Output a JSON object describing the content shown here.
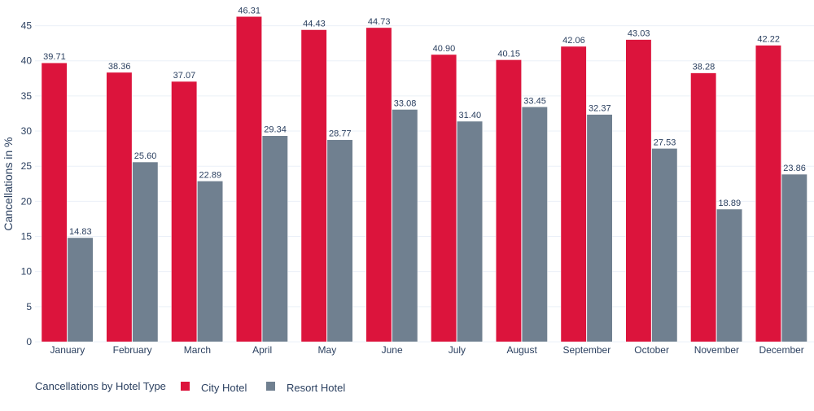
{
  "chart_data": {
    "type": "bar",
    "ylabel": "Cancellations in %",
    "xlabel": "",
    "ylim": [
      0,
      47.5
    ],
    "yticks": [
      0,
      5,
      10,
      15,
      20,
      25,
      30,
      35,
      40,
      45
    ],
    "grid": true,
    "categories": [
      "January",
      "February",
      "March",
      "April",
      "May",
      "June",
      "July",
      "August",
      "September",
      "October",
      "November",
      "December"
    ],
    "series": [
      {
        "name": "City Hotel",
        "color": "#dc143c",
        "values": [
          39.71,
          38.36,
          37.07,
          46.31,
          44.43,
          44.73,
          40.9,
          40.15,
          42.06,
          43.03,
          38.28,
          42.22
        ],
        "labels": [
          "39.71",
          "38.36",
          "37.07",
          "46.31",
          "44.43",
          "44.73",
          "40.90",
          "40.15",
          "42.06",
          "43.03",
          "38.28",
          "42.22"
        ]
      },
      {
        "name": "Resort Hotel",
        "color": "#708090",
        "values": [
          14.83,
          25.6,
          22.89,
          29.34,
          28.77,
          33.08,
          31.4,
          33.45,
          32.37,
          27.53,
          18.89,
          23.86
        ],
        "labels": [
          "14.83",
          "25.60",
          "22.89",
          "29.34",
          "28.77",
          "33.08",
          "31.40",
          "33.45",
          "32.37",
          "27.53",
          "18.89",
          "23.86"
        ]
      }
    ],
    "legend": {
      "title": "Cancellations by Hotel Type",
      "placement": "bottom-left"
    }
  }
}
